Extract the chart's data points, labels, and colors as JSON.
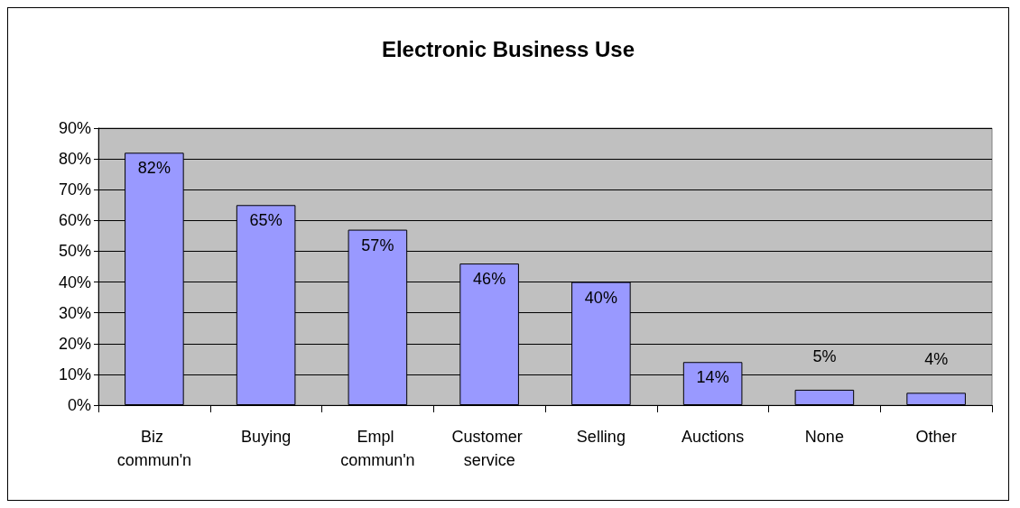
{
  "chart_data": {
    "type": "bar",
    "title": "Electronic Business Use",
    "categories": [
      "Biz commun'n",
      "Buying",
      "Empl commun'n",
      "Customer service",
      "Selling",
      "Auctions",
      "None",
      "Other"
    ],
    "values": [
      82,
      65,
      57,
      46,
      40,
      14,
      5,
      4
    ],
    "value_labels": [
      "82%",
      "65%",
      "57%",
      "46%",
      "40%",
      "14%",
      "5%",
      "4%"
    ],
    "color": "#9999ff",
    "ylim": [
      0,
      90
    ],
    "yticks": [
      {
        "value": 0,
        "label": "0%"
      },
      {
        "value": 10,
        "label": "10%"
      },
      {
        "value": 20,
        "label": "20%"
      },
      {
        "value": 30,
        "label": "30%"
      },
      {
        "value": 40,
        "label": "40%"
      },
      {
        "value": 50,
        "label": "50%"
      },
      {
        "value": 60,
        "label": "60%"
      },
      {
        "value": 70,
        "label": "70%"
      },
      {
        "value": 80,
        "label": "80%"
      },
      {
        "value": 90,
        "label": "90%"
      }
    ],
    "grid": "y"
  }
}
